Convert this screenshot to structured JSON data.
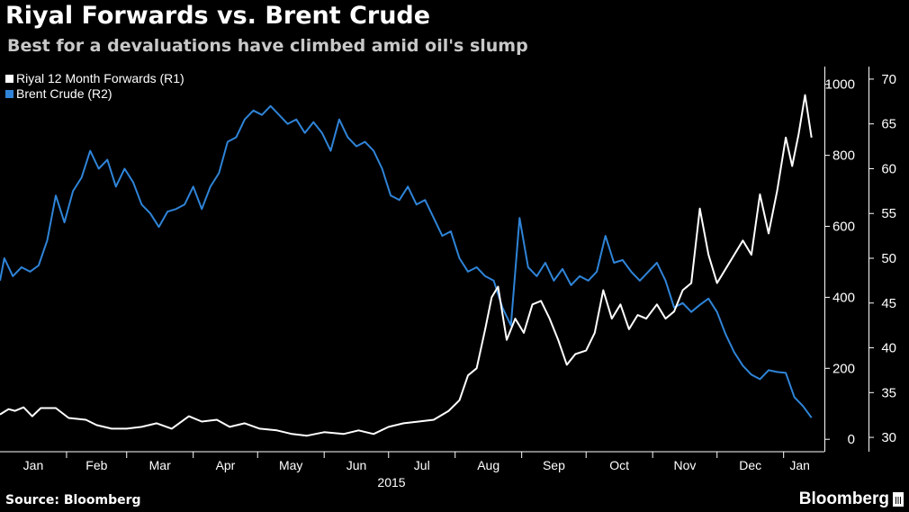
{
  "title": "Riyal Forwards vs. Brent Crude",
  "subtitle": "Best for a devaluations have climbed amid oil's slump",
  "source": "Source: Bloomberg",
  "logo_text": "Bloomberg",
  "year_label": "2015",
  "colors": {
    "riyal": "#ffffff",
    "brent": "#2f84d8",
    "axis": "#ffffff"
  },
  "chart_data": {
    "type": "line",
    "x_ticks": [
      "Jan",
      "Feb",
      "Mar",
      "Apr",
      "May",
      "Jun",
      "Jul",
      "Aug",
      "Sep",
      "Oct",
      "Nov",
      "Dec",
      "Jan"
    ],
    "x_range": [
      "2015-01-01",
      "2016-01-20"
    ],
    "legend": [
      "Riyal 12 Month Forwards (R1)",
      "Brent Crude (R2)"
    ],
    "legend_position": "top-left",
    "grid": false,
    "y_left": {
      "ticks": [],
      "range": [
        0,
        1000
      ]
    },
    "y_right_1": {
      "label": "R1",
      "ticks": [
        0,
        200,
        400,
        600,
        800,
        1000
      ],
      "range": [
        -35,
        1050
      ]
    },
    "y_right_2": {
      "label": "R2",
      "ticks": [
        30,
        35,
        40,
        45,
        50,
        55,
        60,
        65,
        70
      ],
      "range": [
        28.4,
        71.4
      ]
    },
    "series": [
      {
        "name": "Riyal 12 Month Forwards (R1)",
        "axis": "R1",
        "color": "#ffffff",
        "points": [
          [
            "2015-01-01",
            70
          ],
          [
            "2015-01-05",
            85
          ],
          [
            "2015-01-08",
            80
          ],
          [
            "2015-01-12",
            90
          ],
          [
            "2015-01-16",
            65
          ],
          [
            "2015-01-20",
            88
          ],
          [
            "2015-01-27",
            88
          ],
          [
            "2015-02-02",
            60
          ],
          [
            "2015-02-10",
            55
          ],
          [
            "2015-02-15",
            40
          ],
          [
            "2015-02-22",
            30
          ],
          [
            "2015-03-01",
            30
          ],
          [
            "2015-03-08",
            35
          ],
          [
            "2015-03-15",
            45
          ],
          [
            "2015-03-22",
            30
          ],
          [
            "2015-03-30",
            65
          ],
          [
            "2015-04-05",
            50
          ],
          [
            "2015-04-12",
            55
          ],
          [
            "2015-04-18",
            35
          ],
          [
            "2015-04-25",
            45
          ],
          [
            "2015-05-02",
            30
          ],
          [
            "2015-05-10",
            25
          ],
          [
            "2015-05-17",
            15
          ],
          [
            "2015-05-24",
            10
          ],
          [
            "2015-06-01",
            20
          ],
          [
            "2015-06-10",
            15
          ],
          [
            "2015-06-17",
            25
          ],
          [
            "2015-06-24",
            15
          ],
          [
            "2015-07-01",
            35
          ],
          [
            "2015-07-08",
            45
          ],
          [
            "2015-07-15",
            50
          ],
          [
            "2015-07-22",
            55
          ],
          [
            "2015-07-29",
            80
          ],
          [
            "2015-08-03",
            110
          ],
          [
            "2015-08-07",
            180
          ],
          [
            "2015-08-11",
            200
          ],
          [
            "2015-08-15",
            310
          ],
          [
            "2015-08-18",
            400
          ],
          [
            "2015-08-21",
            430
          ],
          [
            "2015-08-25",
            280
          ],
          [
            "2015-08-29",
            340
          ],
          [
            "2015-09-02",
            300
          ],
          [
            "2015-09-06",
            380
          ],
          [
            "2015-09-10",
            390
          ],
          [
            "2015-09-14",
            340
          ],
          [
            "2015-09-18",
            280
          ],
          [
            "2015-09-22",
            210
          ],
          [
            "2015-09-26",
            240
          ],
          [
            "2015-10-01",
            250
          ],
          [
            "2015-10-05",
            300
          ],
          [
            "2015-10-09",
            420
          ],
          [
            "2015-10-13",
            340
          ],
          [
            "2015-10-17",
            380
          ],
          [
            "2015-10-21",
            310
          ],
          [
            "2015-10-25",
            350
          ],
          [
            "2015-10-29",
            340
          ],
          [
            "2015-11-03",
            380
          ],
          [
            "2015-11-07",
            340
          ],
          [
            "2015-11-11",
            360
          ],
          [
            "2015-11-15",
            420
          ],
          [
            "2015-11-19",
            440
          ],
          [
            "2015-11-23",
            650
          ],
          [
            "2015-11-27",
            520
          ],
          [
            "2015-12-01",
            440
          ],
          [
            "2015-12-05",
            480
          ],
          [
            "2015-12-09",
            520
          ],
          [
            "2015-12-13",
            560
          ],
          [
            "2015-12-17",
            520
          ],
          [
            "2015-12-21",
            690
          ],
          [
            "2015-12-25",
            580
          ],
          [
            "2015-12-29",
            700
          ],
          [
            "2016-01-02",
            850
          ],
          [
            "2016-01-05",
            770
          ],
          [
            "2016-01-08",
            860
          ],
          [
            "2016-01-11",
            970
          ],
          [
            "2016-01-14",
            850
          ]
        ]
      },
      {
        "name": "Brent Crude (R2)",
        "axis": "R2",
        "color": "#2f84d8",
        "points": [
          [
            "2015-01-01",
            47.5
          ],
          [
            "2015-01-03",
            50
          ],
          [
            "2015-01-07",
            48
          ],
          [
            "2015-01-11",
            49
          ],
          [
            "2015-01-15",
            48.5
          ],
          [
            "2015-01-19",
            49.2
          ],
          [
            "2015-01-23",
            52
          ],
          [
            "2015-01-27",
            57
          ],
          [
            "2015-01-31",
            54
          ],
          [
            "2015-02-04",
            57.5
          ],
          [
            "2015-02-08",
            59
          ],
          [
            "2015-02-12",
            62
          ],
          [
            "2015-02-16",
            60
          ],
          [
            "2015-02-20",
            61
          ],
          [
            "2015-02-24",
            58
          ],
          [
            "2015-02-28",
            60
          ],
          [
            "2015-03-04",
            58.5
          ],
          [
            "2015-03-08",
            56
          ],
          [
            "2015-03-12",
            55
          ],
          [
            "2015-03-16",
            53.5
          ],
          [
            "2015-03-20",
            55.2
          ],
          [
            "2015-03-24",
            55.5
          ],
          [
            "2015-03-28",
            56
          ],
          [
            "2015-04-01",
            58
          ],
          [
            "2015-04-05",
            55.5
          ],
          [
            "2015-04-09",
            58
          ],
          [
            "2015-04-13",
            59.5
          ],
          [
            "2015-04-17",
            63
          ],
          [
            "2015-04-21",
            63.5
          ],
          [
            "2015-04-25",
            65.5
          ],
          [
            "2015-04-29",
            66.5
          ],
          [
            "2015-05-03",
            66
          ],
          [
            "2015-05-07",
            67
          ],
          [
            "2015-05-11",
            66
          ],
          [
            "2015-05-15",
            65
          ],
          [
            "2015-05-19",
            65.5
          ],
          [
            "2015-05-23",
            64
          ],
          [
            "2015-05-27",
            65.2
          ],
          [
            "2015-05-31",
            64
          ],
          [
            "2015-06-04",
            62
          ],
          [
            "2015-06-08",
            65.5
          ],
          [
            "2015-06-12",
            63.5
          ],
          [
            "2015-06-16",
            62.5
          ],
          [
            "2015-06-20",
            63
          ],
          [
            "2015-06-24",
            62
          ],
          [
            "2015-06-28",
            60
          ],
          [
            "2015-07-02",
            57
          ],
          [
            "2015-07-06",
            56.5
          ],
          [
            "2015-07-10",
            58
          ],
          [
            "2015-07-14",
            56
          ],
          [
            "2015-07-18",
            56.5
          ],
          [
            "2015-07-22",
            54.5
          ],
          [
            "2015-07-26",
            52.5
          ],
          [
            "2015-07-30",
            53
          ],
          [
            "2015-08-03",
            50
          ],
          [
            "2015-08-07",
            48.5
          ],
          [
            "2015-08-11",
            49
          ],
          [
            "2015-08-15",
            48
          ],
          [
            "2015-08-19",
            47.5
          ],
          [
            "2015-08-23",
            44.5
          ],
          [
            "2015-08-27",
            42.5
          ],
          [
            "2015-08-31",
            54.5
          ],
          [
            "2015-09-04",
            49
          ],
          [
            "2015-09-08",
            48
          ],
          [
            "2015-09-12",
            49.5
          ],
          [
            "2015-09-16",
            47.5
          ],
          [
            "2015-09-20",
            48.8
          ],
          [
            "2015-09-24",
            47
          ],
          [
            "2015-09-28",
            48
          ],
          [
            "2015-10-02",
            47.5
          ],
          [
            "2015-10-06",
            48.5
          ],
          [
            "2015-10-10",
            52.5
          ],
          [
            "2015-10-14",
            49.5
          ],
          [
            "2015-10-18",
            49.8
          ],
          [
            "2015-10-22",
            48.5
          ],
          [
            "2015-10-26",
            47.5
          ],
          [
            "2015-10-30",
            48.5
          ],
          [
            "2015-11-03",
            49.5
          ],
          [
            "2015-11-07",
            47.5
          ],
          [
            "2015-11-11",
            44.5
          ],
          [
            "2015-11-15",
            45
          ],
          [
            "2015-11-19",
            44
          ],
          [
            "2015-11-23",
            44.8
          ],
          [
            "2015-11-27",
            45.5
          ],
          [
            "2015-12-01",
            44
          ],
          [
            "2015-12-05",
            41.5
          ],
          [
            "2015-12-09",
            39.5
          ],
          [
            "2015-12-13",
            38
          ],
          [
            "2015-12-17",
            37
          ],
          [
            "2015-12-21",
            36.5
          ],
          [
            "2015-12-25",
            37.5
          ],
          [
            "2015-12-29",
            37.3
          ],
          [
            "2016-01-02",
            37.2
          ],
          [
            "2016-01-06",
            34.5
          ],
          [
            "2016-01-10",
            33.5
          ],
          [
            "2016-01-14",
            32.2
          ]
        ]
      }
    ]
  }
}
